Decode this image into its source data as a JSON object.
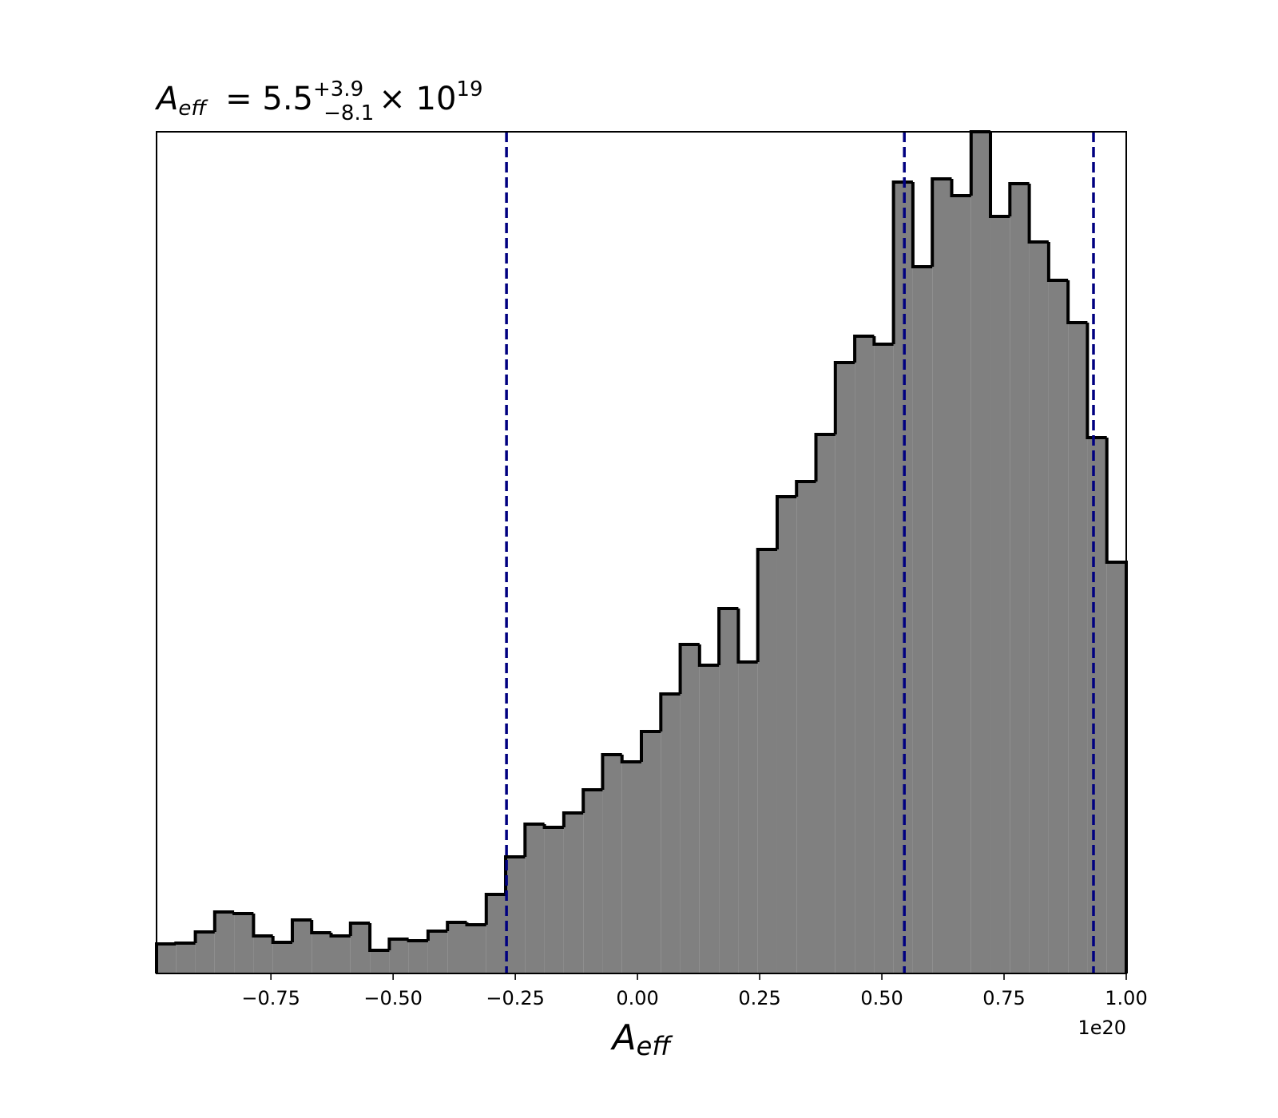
{
  "chart_data": {
    "type": "histogram",
    "title": {
      "symbol": "A",
      "subscript": "eff",
      "text": "= 5.5",
      "sup": "+3.9",
      "sub": "−8.1",
      "times": "× 10",
      "exponent": "19"
    },
    "xlabel": {
      "symbol": "A",
      "subscript": "eff"
    },
    "x_offset_label": "1e20",
    "bins": [
      -0.984,
      -0.9443,
      -0.9046,
      -0.865,
      -0.8253,
      -0.7856,
      -0.7459,
      -0.7062,
      -0.6666,
      -0.6269,
      -0.5872,
      -0.5475,
      -0.5078,
      -0.4682,
      -0.4285,
      -0.3888,
      -0.3491,
      -0.3094,
      -0.2698,
      -0.2301,
      -0.1904,
      -0.1507,
      -0.111,
      -0.0714,
      -0.0317,
      0.008,
      0.0477,
      0.0874,
      0.127,
      0.1667,
      0.2064,
      0.2461,
      0.2858,
      0.3254,
      0.3651,
      0.4048,
      0.4445,
      0.4842,
      0.5238,
      0.5635,
      0.6032,
      0.6429,
      0.6826,
      0.7222,
      0.7619,
      0.8016,
      0.8413,
      0.881,
      0.9206,
      0.9603,
      1.0
    ],
    "values": [
      37,
      38,
      52,
      77,
      75,
      47,
      39,
      67,
      51,
      47,
      63,
      29,
      43,
      41,
      53,
      64,
      61,
      99,
      146,
      187,
      183,
      201,
      230,
      274,
      265,
      303,
      350,
      412,
      386,
      457,
      390,
      531,
      597,
      616,
      675,
      765,
      798,
      788,
      991,
      885,
      995,
      974,
      1054,
      948,
      989,
      916,
      868,
      815,
      671,
      515
    ],
    "color": "#808080",
    "edge_color": "#000000",
    "xlim": [
      -0.984,
      1.0
    ],
    "ylim": [
      0,
      1054
    ],
    "xticks": [
      {
        "value": -0.75,
        "label": "−0.75"
      },
      {
        "value": -0.5,
        "label": "−0.50"
      },
      {
        "value": -0.25,
        "label": "−0.25"
      },
      {
        "value": 0,
        "label": "0.00"
      },
      {
        "value": 0.25,
        "label": "0.25"
      },
      {
        "value": 0.5,
        "label": "0.50"
      },
      {
        "value": 0.75,
        "label": "0.75"
      },
      {
        "value": 1.0,
        "label": "1.00"
      }
    ],
    "vlines": [
      -0.268,
      0.546,
      0.933
    ],
    "vline_color": "#000080"
  }
}
